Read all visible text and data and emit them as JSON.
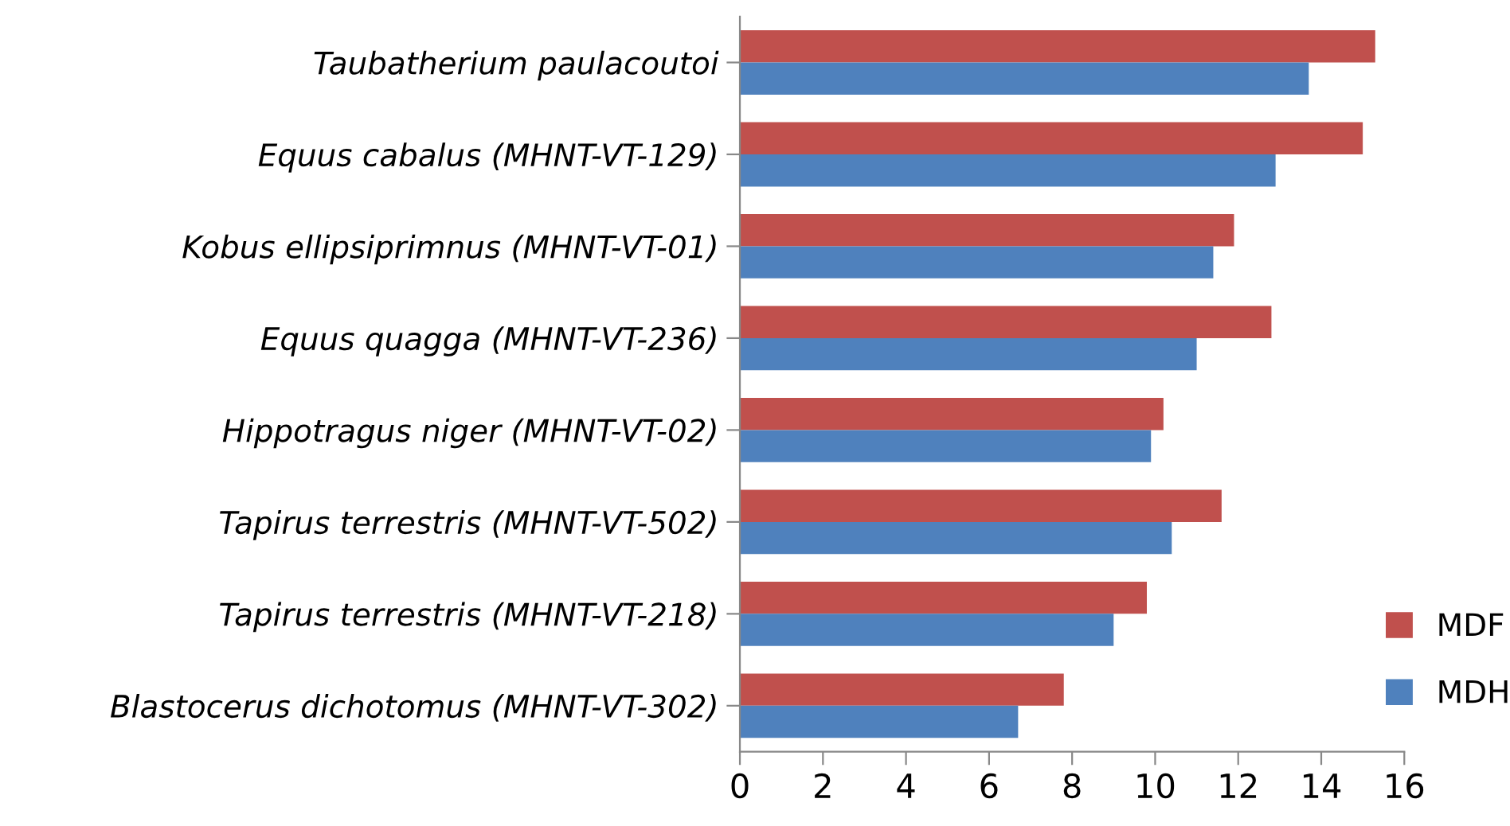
{
  "chart_data": {
    "type": "bar",
    "orientation": "horizontal",
    "categories": [
      "Taubatherium paulacoutoi",
      "Equus cabalus (MHNT-VT-129)",
      "Kobus ellipsiprimnus (MHNT-VT-01)",
      "Equus quagga (MHNT-VT-236)",
      "Hippotragus niger (MHNT-VT-02)",
      "Tapirus terrestris (MHNT-VT-502)",
      "Tapirus terrestris (MHNT-VT-218)",
      "Blastocerus dichotomus (MHNT-VT-302)"
    ],
    "series": [
      {
        "name": "MDF",
        "color": "#c0504d",
        "values": [
          15.3,
          15.0,
          11.9,
          12.8,
          10.2,
          11.6,
          9.8,
          7.8
        ]
      },
      {
        "name": "MDH",
        "color": "#4f81bd",
        "values": [
          13.7,
          12.9,
          11.4,
          11.0,
          9.9,
          10.4,
          9.0,
          6.7
        ]
      }
    ],
    "xlim": [
      0,
      16
    ],
    "xticks": [
      0,
      2,
      4,
      6,
      8,
      10,
      12,
      14,
      16
    ],
    "grid": false,
    "legend": "right"
  }
}
